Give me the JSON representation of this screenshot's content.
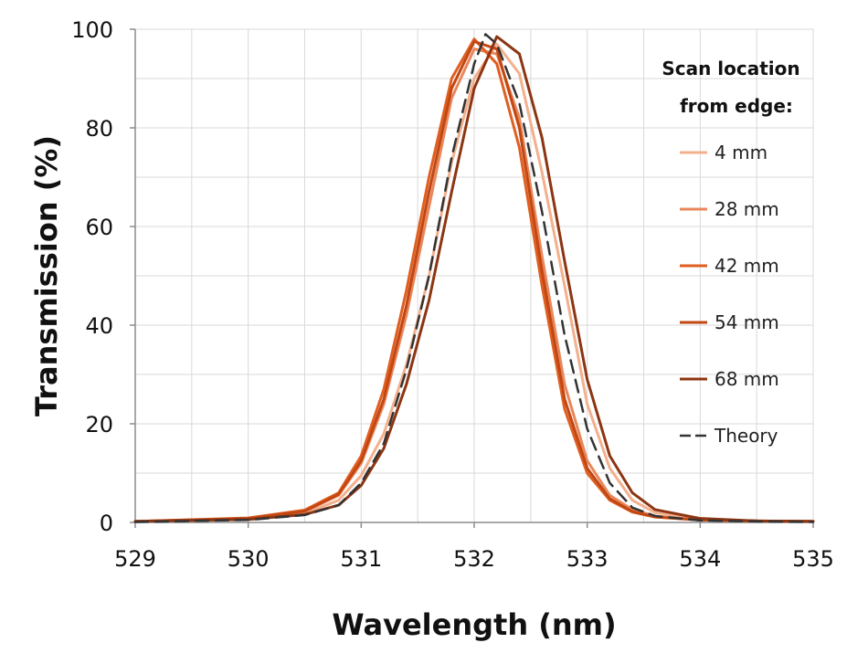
{
  "chart_data": {
    "type": "line",
    "title": "",
    "xlabel": "Wavelength (nm)",
    "ylabel": "Transmission (%)",
    "xlim": [
      529,
      535
    ],
    "ylim": [
      0,
      100
    ],
    "x_ticks": [
      "529",
      "530",
      "531",
      "532",
      "533",
      "534",
      "535"
    ],
    "y_ticks": [
      "0",
      "20",
      "40",
      "60",
      "80",
      "100"
    ],
    "grid": true,
    "legend": {
      "title_line1": "Scan location",
      "title_line2": "from edge:",
      "position": "right"
    },
    "series": [
      {
        "name": "4 mm",
        "color": "#f3b08d",
        "dash": false,
        "points": [
          [
            529.0,
            0.2
          ],
          [
            530.0,
            0.6
          ],
          [
            530.5,
            1.8
          ],
          [
            530.8,
            4.5
          ],
          [
            531.0,
            9.5
          ],
          [
            531.2,
            18.0
          ],
          [
            531.4,
            32.0
          ],
          [
            531.6,
            50.0
          ],
          [
            531.8,
            73.0
          ],
          [
            532.0,
            90.0
          ],
          [
            532.2,
            97.0
          ],
          [
            532.4,
            91.0
          ],
          [
            532.6,
            71.0
          ],
          [
            532.8,
            48.0
          ],
          [
            533.0,
            24.0
          ],
          [
            533.2,
            11.0
          ],
          [
            533.4,
            4.5
          ],
          [
            533.6,
            2.0
          ],
          [
            534.0,
            0.7
          ],
          [
            534.5,
            0.3
          ],
          [
            535.0,
            0.2
          ]
        ]
      },
      {
        "name": "28 mm",
        "color": "#e9875c",
        "dash": false,
        "points": [
          [
            529.0,
            0.2
          ],
          [
            530.0,
            0.8
          ],
          [
            530.5,
            2.2
          ],
          [
            530.8,
            5.5
          ],
          [
            531.0,
            12.0
          ],
          [
            531.2,
            24.0
          ],
          [
            531.4,
            42.0
          ],
          [
            531.6,
            64.0
          ],
          [
            531.8,
            86.0
          ],
          [
            532.0,
            96.0
          ],
          [
            532.2,
            95.0
          ],
          [
            532.4,
            82.0
          ],
          [
            532.6,
            54.0
          ],
          [
            532.8,
            28.0
          ],
          [
            533.0,
            12.5
          ],
          [
            533.2,
            5.5
          ],
          [
            533.4,
            2.6
          ],
          [
            533.6,
            1.3
          ],
          [
            534.0,
            0.5
          ],
          [
            534.5,
            0.3
          ],
          [
            535.0,
            0.2
          ]
        ]
      },
      {
        "name": "42 mm",
        "color": "#df5f22",
        "dash": false,
        "points": [
          [
            529.0,
            0.2
          ],
          [
            530.0,
            0.9
          ],
          [
            530.5,
            2.5
          ],
          [
            530.8,
            6.0
          ],
          [
            531.0,
            13.5
          ],
          [
            531.2,
            27.0
          ],
          [
            531.4,
            47.0
          ],
          [
            531.6,
            70.0
          ],
          [
            531.8,
            90.0
          ],
          [
            532.0,
            98.0
          ],
          [
            532.2,
            93.0
          ],
          [
            532.4,
            76.0
          ],
          [
            532.6,
            48.0
          ],
          [
            532.8,
            23.0
          ],
          [
            533.0,
            10.0
          ],
          [
            533.2,
            4.5
          ],
          [
            533.4,
            2.1
          ],
          [
            533.6,
            1.1
          ],
          [
            534.0,
            0.5
          ],
          [
            534.5,
            0.3
          ],
          [
            535.0,
            0.2
          ]
        ]
      },
      {
        "name": "54 mm",
        "color": "#c24712",
        "dash": false,
        "points": [
          [
            529.0,
            0.2
          ],
          [
            530.0,
            0.8
          ],
          [
            530.5,
            2.3
          ],
          [
            530.8,
            5.7
          ],
          [
            531.0,
            12.5
          ],
          [
            531.2,
            25.0
          ],
          [
            531.4,
            44.0
          ],
          [
            531.6,
            67.0
          ],
          [
            531.8,
            88.0
          ],
          [
            532.0,
            97.5
          ],
          [
            532.2,
            96.0
          ],
          [
            532.4,
            80.0
          ],
          [
            532.6,
            51.0
          ],
          [
            532.8,
            25.0
          ],
          [
            533.0,
            11.0
          ],
          [
            533.2,
            4.8
          ],
          [
            533.4,
            2.2
          ],
          [
            533.6,
            1.1
          ],
          [
            534.0,
            0.5
          ],
          [
            534.5,
            0.3
          ],
          [
            535.0,
            0.2
          ]
        ]
      },
      {
        "name": "68 mm",
        "color": "#8c3512",
        "dash": false,
        "points": [
          [
            529.0,
            0.2
          ],
          [
            530.0,
            0.6
          ],
          [
            530.5,
            1.6
          ],
          [
            530.8,
            3.5
          ],
          [
            531.0,
            7.5
          ],
          [
            531.2,
            15.0
          ],
          [
            531.4,
            28.0
          ],
          [
            531.6,
            45.0
          ],
          [
            531.8,
            67.0
          ],
          [
            532.0,
            88.0
          ],
          [
            532.2,
            98.5
          ],
          [
            532.4,
            95.0
          ],
          [
            532.6,
            78.0
          ],
          [
            532.8,
            53.0
          ],
          [
            533.0,
            29.0
          ],
          [
            533.2,
            13.5
          ],
          [
            533.4,
            6.0
          ],
          [
            533.6,
            2.6
          ],
          [
            534.0,
            0.8
          ],
          [
            534.5,
            0.3
          ],
          [
            535.0,
            0.2
          ]
        ]
      },
      {
        "name": "Theory",
        "color": "#333333",
        "dash": true,
        "points": [
          [
            529.0,
            0.1
          ],
          [
            530.0,
            0.5
          ],
          [
            530.5,
            1.5
          ],
          [
            530.8,
            3.5
          ],
          [
            531.0,
            8.0
          ],
          [
            531.2,
            16.0
          ],
          [
            531.4,
            31.0
          ],
          [
            531.6,
            50.0
          ],
          [
            531.8,
            74.0
          ],
          [
            532.0,
            93.0
          ],
          [
            532.1,
            99.0
          ],
          [
            532.2,
            97.0
          ],
          [
            532.4,
            85.0
          ],
          [
            532.6,
            63.0
          ],
          [
            532.8,
            38.0
          ],
          [
            533.0,
            19.0
          ],
          [
            533.2,
            8.0
          ],
          [
            533.4,
            3.0
          ],
          [
            533.6,
            1.3
          ],
          [
            534.0,
            0.4
          ],
          [
            534.5,
            0.2
          ],
          [
            535.0,
            0.1
          ]
        ]
      }
    ]
  }
}
